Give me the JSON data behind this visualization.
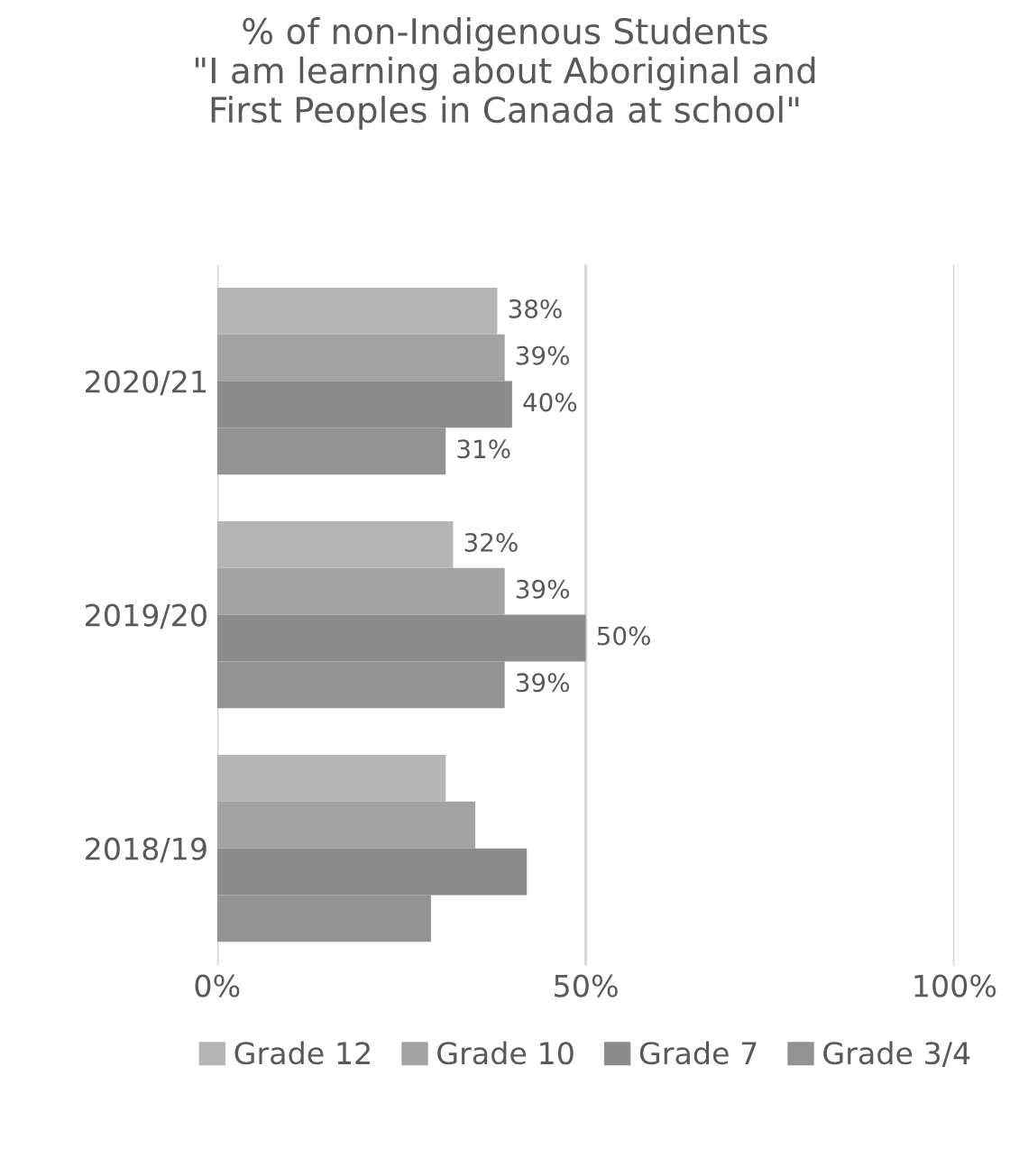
{
  "chart_data": {
    "type": "bar",
    "orientation": "horizontal",
    "title": "% of non-Indigenous Students\n\"I am learning about Aboriginal and\nFirst Peoples in Canada at school\"",
    "categories": [
      "2020/21",
      "2019/20",
      "2018/19"
    ],
    "series": [
      {
        "name": "Grade 12",
        "color": "#b5b5b5",
        "values": [
          38,
          32,
          31
        ],
        "value_labels": [
          "38%",
          "32%",
          null
        ]
      },
      {
        "name": "Grade 10",
        "color": "#a3a3a3",
        "values": [
          39,
          39,
          35
        ],
        "value_labels": [
          "39%",
          "39%",
          null
        ]
      },
      {
        "name": "Grade 7",
        "color": "#8c8c8c",
        "values": [
          40,
          50,
          42
        ],
        "value_labels": [
          "40%",
          "50%",
          null
        ]
      },
      {
        "name": "Grade 3/4",
        "color": "#939393",
        "values": [
          31,
          39,
          29
        ],
        "value_labels": [
          "31%",
          "39%",
          null
        ]
      }
    ],
    "xlim": [
      0,
      100
    ],
    "xticks": [
      {
        "value": 0,
        "label": "0%"
      },
      {
        "value": 50,
        "label": "50%"
      },
      {
        "value": 100,
        "label": "100%"
      }
    ],
    "grid": "x",
    "legend": "bottom"
  }
}
